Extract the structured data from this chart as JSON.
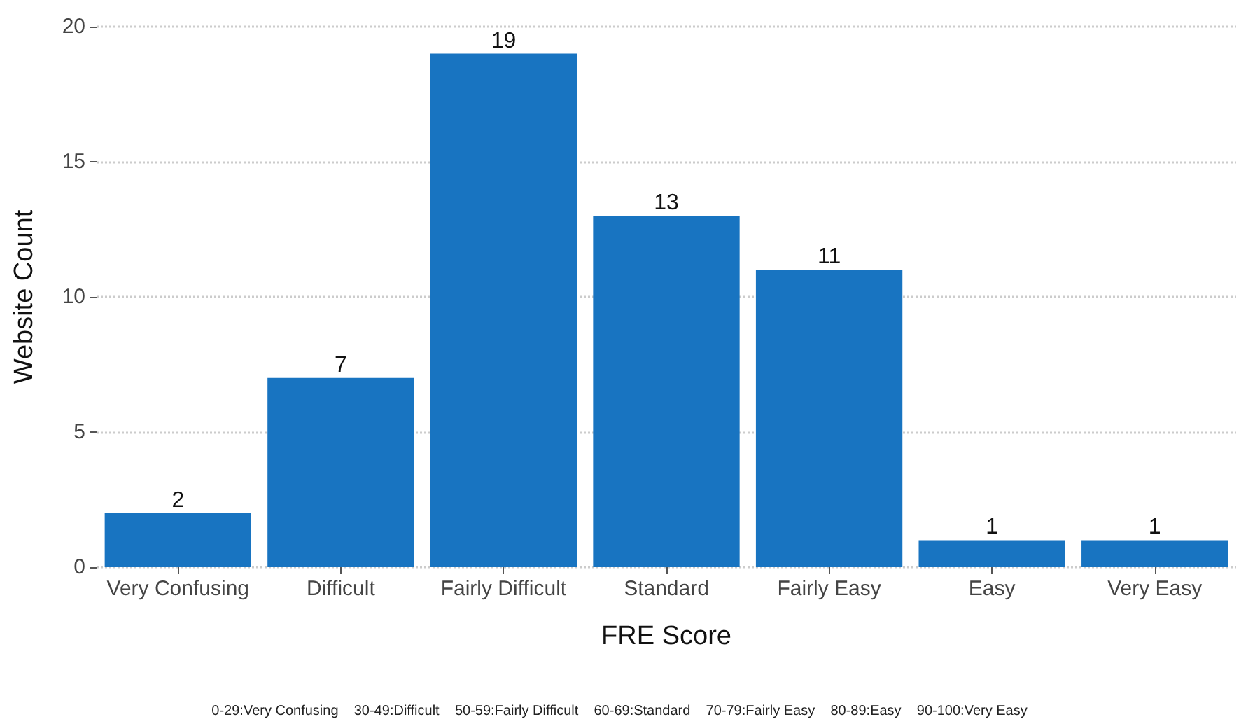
{
  "chart_data": {
    "type": "bar",
    "xlabel": "FRE Score",
    "ylabel": "Website Count",
    "categories": [
      "Very Confusing",
      "Difficult",
      "Fairly Difficult",
      "Standard",
      "Fairly Easy",
      "Easy",
      "Very Easy"
    ],
    "values": [
      2,
      7,
      19,
      13,
      11,
      1,
      1
    ],
    "color": "#1874c1",
    "ylim": [
      0,
      20
    ],
    "yticks": [
      0,
      5,
      10,
      15,
      20
    ],
    "grid": "y",
    "data_labels": true,
    "annotations": [
      "0-29:Very Confusing    30-49:Difficult    50-59:Fairly Difficult    60-69:Standard    70-79:Fairly Easy    80-89:Easy    90-100:Very Easy"
    ]
  }
}
